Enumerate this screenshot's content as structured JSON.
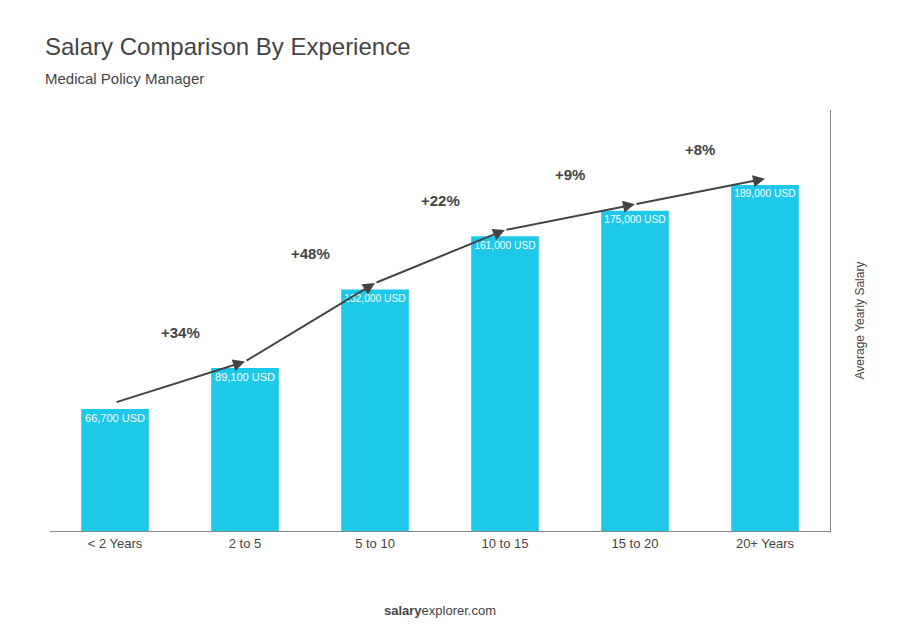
{
  "chart_data": {
    "type": "bar",
    "title": "Salary Comparison By Experience",
    "subtitle": "Medical Policy Manager",
    "categories": [
      "< 2 Years",
      "2 to 5",
      "5 to 10",
      "10 to 15",
      "15 to 20",
      "20+ Years"
    ],
    "values": [
      66700,
      89100,
      132000,
      161000,
      175000,
      189000
    ],
    "value_labels": [
      "66,700 USD",
      "89,100 USD",
      "132,000 USD",
      "161,000 USD",
      "175,000 USD",
      "189,000 USD"
    ],
    "data_labels": true,
    "annotations": [
      "+34%",
      "+48%",
      "+22%",
      "+9%",
      "+8%"
    ],
    "color": "#1EC8E8",
    "ylabel": "Average Yearly Salary",
    "footer": [
      "salary",
      "explorer.com"
    ],
    "ylim": [
      0,
      230000
    ],
    "tick_labels": "x",
    "grid": false
  }
}
